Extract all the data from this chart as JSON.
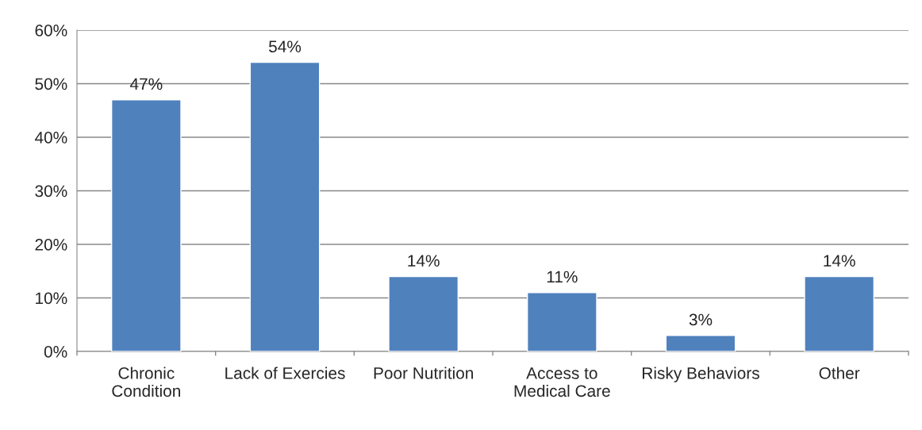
{
  "chart_data": {
    "type": "bar",
    "categories": [
      "Chronic\nCondition",
      "Lack of Exercies",
      "Poor Nutrition",
      "Access to\nMedical Care",
      "Risky Behaviors",
      "Other"
    ],
    "values": [
      47,
      54,
      14,
      11,
      3,
      14
    ],
    "value_labels": [
      "47%",
      "54%",
      "14%",
      "11%",
      "3%",
      "14%"
    ],
    "color": "#4f81bd",
    "ylim": [
      0,
      60
    ],
    "yticks": [
      {
        "value": 0,
        "label": "0%"
      },
      {
        "value": 10,
        "label": "10%"
      },
      {
        "value": 20,
        "label": "20%"
      },
      {
        "value": 30,
        "label": "30%"
      },
      {
        "value": 40,
        "label": "40%"
      },
      {
        "value": 50,
        "label": "50%"
      },
      {
        "value": 60,
        "label": "60%"
      }
    ],
    "grid": "y",
    "legend": false
  }
}
